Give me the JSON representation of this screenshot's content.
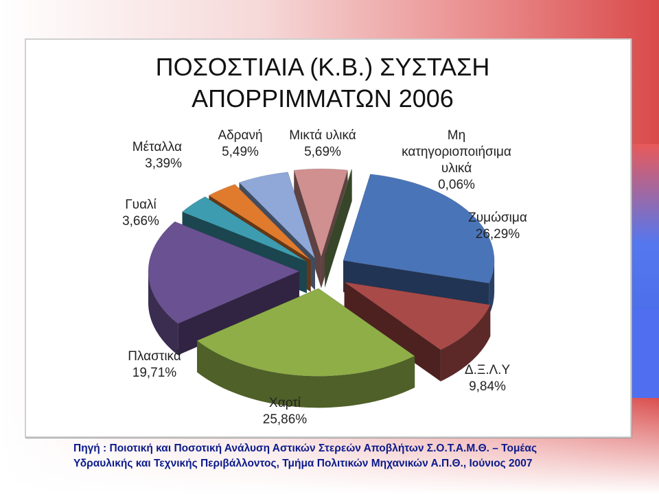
{
  "chart_data": {
    "type": "pie",
    "title_lines": [
      "ΠΟΣΟΣΤΙΑΙΑ (Κ.Β.) ΣΥΣΤΑΣΗ",
      "ΑΠΟΡΡΙΜΜΑΤΩΝ 2006"
    ],
    "slices": [
      {
        "name": "Ζυμώσιμα",
        "value": 26.29,
        "value_label": "26,29%",
        "color": "#4a74b8"
      },
      {
        "name": "Δ.Ξ.Λ.Υ",
        "value": 9.84,
        "value_label": "9,84%",
        "color": "#a84a48"
      },
      {
        "name": "Χαρτί",
        "value": 25.86,
        "value_label": "25,86%",
        "color": "#8fae48"
      },
      {
        "name": "Πλαστικά",
        "value": 19.71,
        "value_label": "19,71%",
        "color": "#6a5192"
      },
      {
        "name": "Γυαλί",
        "value": 3.66,
        "value_label": "3,66%",
        "color": "#3d9cb0"
      },
      {
        "name": "Μέταλλα",
        "value": 3.39,
        "value_label": "3,39%",
        "color": "#e07b2e"
      },
      {
        "name": "Αδρανή",
        "value": 5.49,
        "value_label": "5,49%",
        "color": "#8fa8d8"
      },
      {
        "name": "Μικτά υλικά",
        "value": 5.69,
        "value_label": "5,69%",
        "color": "#d09090"
      },
      {
        "name": "Μη κατηγοριοποιήσιμα υλικά",
        "value": 0.06,
        "value_label": "0,06%",
        "color": "#7a9a5a"
      }
    ],
    "labels": {
      "zymosima": {
        "name": "Ζυμώσιμα",
        "value": "26,29%"
      },
      "dxly": {
        "name": "Δ.Ξ.Λ.Υ",
        "value": "9,84%"
      },
      "xarti": {
        "name": "Χαρτί",
        "value": "25,86%"
      },
      "plastika": {
        "name": "Πλαστικά",
        "value": "19,71%"
      },
      "gyali": {
        "name": "Γυαλί",
        "value": "3,66%"
      },
      "metalla": {
        "name": "Μέταλλα",
        "value": "3,39%"
      },
      "adrani": {
        "name": "Αδρανή",
        "value": "5,49%"
      },
      "mikta": {
        "name": "Μικτά υλικά",
        "value": "5,69%"
      },
      "mi_kat": {
        "name_lines": [
          "Μη",
          "κατηγοριοποιήσιμα",
          "υλικά"
        ],
        "value": "0,06%"
      }
    }
  },
  "source_lines": [
    "Πηγή : Ποιοτική και Ποσοτική Ανάλυση Αστικών Στερεών Αποβλήτων Σ.Ο.Τ.Α.Μ.Θ. – Τομέας",
    "Υδραυλικής και Τεχνικής Περιβάλλοντος, Τμήμα Πολιτικών Μηχανικών Α.Π.Θ., Ιούνιος 2007"
  ]
}
